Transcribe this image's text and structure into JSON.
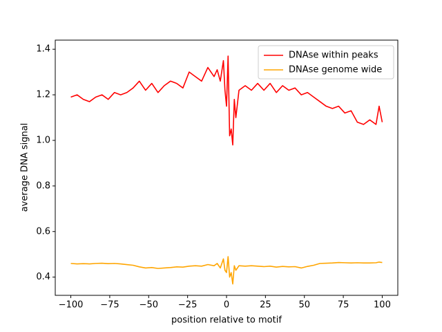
{
  "chart_data": {
    "type": "line",
    "xlabel": "position relative to motif",
    "ylabel": "average DNA signal",
    "x": [
      -100,
      -96,
      -92,
      -88,
      -84,
      -80,
      -76,
      -72,
      -68,
      -64,
      -60,
      -56,
      -52,
      -48,
      -44,
      -40,
      -36,
      -32,
      -28,
      -24,
      -20,
      -16,
      -12,
      -8,
      -6,
      -4,
      -2,
      -1,
      0,
      1,
      2,
      3,
      4,
      5,
      6,
      8,
      12,
      16,
      20,
      24,
      28,
      32,
      36,
      40,
      44,
      48,
      52,
      56,
      60,
      64,
      68,
      72,
      76,
      80,
      84,
      88,
      92,
      96,
      98,
      100
    ],
    "series": [
      {
        "name": "DNAse within peaks",
        "color": "#ff0000",
        "values": [
          1.19,
          1.2,
          1.18,
          1.17,
          1.19,
          1.2,
          1.18,
          1.21,
          1.2,
          1.21,
          1.23,
          1.26,
          1.22,
          1.25,
          1.21,
          1.24,
          1.26,
          1.25,
          1.23,
          1.3,
          1.28,
          1.26,
          1.32,
          1.28,
          1.31,
          1.26,
          1.35,
          1.22,
          1.15,
          1.37,
          1.02,
          1.05,
          0.98,
          1.18,
          1.1,
          1.22,
          1.24,
          1.22,
          1.25,
          1.22,
          1.25,
          1.21,
          1.24,
          1.22,
          1.23,
          1.2,
          1.21,
          1.19,
          1.17,
          1.15,
          1.14,
          1.15,
          1.12,
          1.13,
          1.08,
          1.07,
          1.09,
          1.07,
          1.15,
          1.08
        ]
      },
      {
        "name": "DNAse genome wide",
        "color": "#ffa500",
        "values": [
          0.46,
          0.458,
          0.459,
          0.458,
          0.46,
          0.461,
          0.459,
          0.46,
          0.458,
          0.455,
          0.452,
          0.445,
          0.44,
          0.442,
          0.438,
          0.44,
          0.442,
          0.445,
          0.444,
          0.448,
          0.45,
          0.448,
          0.455,
          0.45,
          0.46,
          0.44,
          0.48,
          0.43,
          0.42,
          0.49,
          0.4,
          0.42,
          0.37,
          0.45,
          0.43,
          0.45,
          0.448,
          0.45,
          0.448,
          0.446,
          0.448,
          0.444,
          0.447,
          0.445,
          0.446,
          0.44,
          0.447,
          0.452,
          0.46,
          0.461,
          0.462,
          0.464,
          0.463,
          0.462,
          0.463,
          0.462,
          0.462,
          0.463,
          0.466,
          0.464
        ]
      }
    ],
    "xlim": [
      -110,
      110
    ],
    "ylim": [
      0.32,
      1.44
    ],
    "xticks": [
      {
        "value": -100,
        "label": "−100"
      },
      {
        "value": -75,
        "label": "−75"
      },
      {
        "value": -50,
        "label": "−50"
      },
      {
        "value": -25,
        "label": "−25"
      },
      0,
      25,
      50,
      75,
      100
    ],
    "yticks": [
      0.4,
      0.6,
      0.8,
      {
        "value": 1,
        "label": "1.0"
      },
      1.2,
      1.4
    ],
    "legend": "upper right"
  }
}
